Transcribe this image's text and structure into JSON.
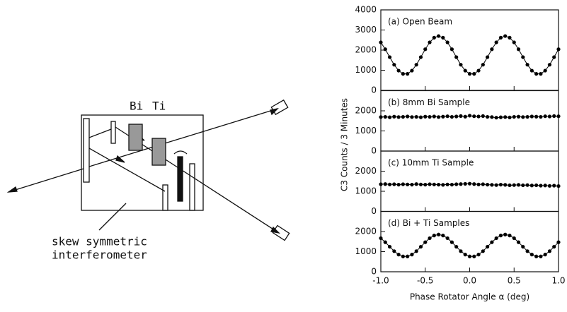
{
  "diagram": {
    "sample_labels": [
      "Bi",
      "Ti"
    ],
    "caption": [
      "skew symmetric",
      "interferometer"
    ]
  },
  "ylabel": "C3 Counts / 3 Minutes",
  "chart_data": [
    {
      "type": "line",
      "title": "(a) Open Beam",
      "color": "#000000",
      "x": [
        -1,
        -0.95,
        -0.9,
        -0.85,
        -0.8,
        -0.75,
        -0.7,
        -0.65,
        -0.6,
        -0.55,
        -0.5,
        -0.45,
        -0.4,
        -0.35,
        -0.3,
        -0.25,
        -0.2,
        -0.15,
        -0.1,
        -0.05,
        0,
        0.05,
        0.1,
        0.15,
        0.2,
        0.25,
        0.3,
        0.35,
        0.4,
        0.45,
        0.5,
        0.55,
        0.6,
        0.65,
        0.7,
        0.75,
        0.8,
        0.85,
        0.9,
        0.95,
        1
      ],
      "values": [
        2386,
        2044,
        1651,
        1275,
        981,
        821,
        821,
        981,
        1275,
        1651,
        2044,
        2386,
        2618,
        2700,
        2618,
        2386,
        2044,
        1651,
        1275,
        981,
        821,
        821,
        981,
        1275,
        1651,
        2044,
        2386,
        2618,
        2700,
        2618,
        2386,
        2044,
        1651,
        1275,
        981,
        821,
        821,
        981,
        1275,
        1651,
        2044
      ],
      "xlim": [
        -1,
        1
      ],
      "ylim": [
        0,
        4000
      ],
      "yticks": [
        0,
        1000,
        2000,
        3000,
        4000
      ]
    },
    {
      "type": "line",
      "title": "(b) 8mm Bi Sample",
      "color": "#000000",
      "x": [
        -1,
        -0.95,
        -0.9,
        -0.85,
        -0.8,
        -0.75,
        -0.7,
        -0.65,
        -0.6,
        -0.55,
        -0.5,
        -0.45,
        -0.4,
        -0.35,
        -0.3,
        -0.25,
        -0.2,
        -0.15,
        -0.1,
        -0.05,
        0,
        0.05,
        0.1,
        0.15,
        0.2,
        0.25,
        0.3,
        0.35,
        0.4,
        0.45,
        0.5,
        0.55,
        0.6,
        0.65,
        0.7,
        0.75,
        0.8,
        0.85,
        0.9,
        0.95,
        1
      ],
      "values": [
        1690,
        1700,
        1680,
        1710,
        1690,
        1700,
        1720,
        1690,
        1700,
        1680,
        1710,
        1700,
        1720,
        1690,
        1710,
        1730,
        1700,
        1720,
        1740,
        1710,
        1760,
        1730,
        1720,
        1740,
        1700,
        1690,
        1660,
        1680,
        1690,
        1670,
        1700,
        1710,
        1690,
        1700,
        1720,
        1710,
        1700,
        1730,
        1720,
        1740,
        1730
      ],
      "xlim": [
        -1,
        1
      ],
      "ylim": [
        0,
        3000
      ],
      "yticks": [
        0,
        1000,
        2000
      ]
    },
    {
      "type": "line",
      "title": "(c) 10mm Ti Sample",
      "color": "#000000",
      "x": [
        -1,
        -0.95,
        -0.9,
        -0.85,
        -0.8,
        -0.75,
        -0.7,
        -0.65,
        -0.6,
        -0.55,
        -0.5,
        -0.45,
        -0.4,
        -0.35,
        -0.3,
        -0.25,
        -0.2,
        -0.15,
        -0.1,
        -0.05,
        0,
        0.05,
        0.1,
        0.15,
        0.2,
        0.25,
        0.3,
        0.35,
        0.4,
        0.45,
        0.5,
        0.55,
        0.6,
        0.65,
        0.7,
        0.75,
        0.8,
        0.85,
        0.9,
        0.95,
        1
      ],
      "values": [
        1350,
        1360,
        1340,
        1350,
        1330,
        1350,
        1340,
        1330,
        1360,
        1340,
        1330,
        1350,
        1340,
        1330,
        1320,
        1340,
        1330,
        1350,
        1360,
        1370,
        1380,
        1360,
        1340,
        1350,
        1330,
        1320,
        1310,
        1330,
        1320,
        1300,
        1310,
        1320,
        1300,
        1310,
        1290,
        1300,
        1280,
        1290,
        1270,
        1280,
        1260
      ],
      "xlim": [
        -1,
        1
      ],
      "ylim": [
        0,
        3000
      ],
      "yticks": [
        0,
        1000,
        2000
      ]
    },
    {
      "type": "line",
      "title": "(d) Bi + Ti Samples",
      "color": "#000000",
      "x": [
        -1,
        -0.95,
        -0.9,
        -0.85,
        -0.8,
        -0.75,
        -0.7,
        -0.65,
        -0.6,
        -0.55,
        -0.5,
        -0.45,
        -0.4,
        -0.35,
        -0.3,
        -0.25,
        -0.2,
        -0.15,
        -0.1,
        -0.05,
        0,
        0.05,
        0.1,
        0.15,
        0.2,
        0.25,
        0.3,
        0.35,
        0.4,
        0.45,
        0.5,
        0.55,
        0.6,
        0.65,
        0.7,
        0.75,
        0.8,
        0.85,
        0.9,
        0.95,
        1
      ],
      "values": [
        1668,
        1470,
        1243,
        1025,
        855,
        762,
        762,
        855,
        1025,
        1243,
        1470,
        1668,
        1802,
        1850,
        1802,
        1668,
        1470,
        1243,
        1025,
        855,
        762,
        762,
        855,
        1025,
        1243,
        1470,
        1668,
        1802,
        1850,
        1802,
        1668,
        1470,
        1243,
        1025,
        855,
        762,
        762,
        855,
        1025,
        1243,
        1470
      ],
      "xlim": [
        -1,
        1
      ],
      "ylim": [
        0,
        3000
      ],
      "yticks": [
        0,
        1000,
        2000
      ],
      "xlabel": "Phase Rotator Angle α (deg)",
      "xticks": [
        {
          "value": -1,
          "label": "-1.0"
        },
        -0.5,
        {
          "value": 0,
          "label": "0.0"
        },
        0.5,
        {
          "value": 1,
          "label": "1.0"
        }
      ]
    }
  ]
}
